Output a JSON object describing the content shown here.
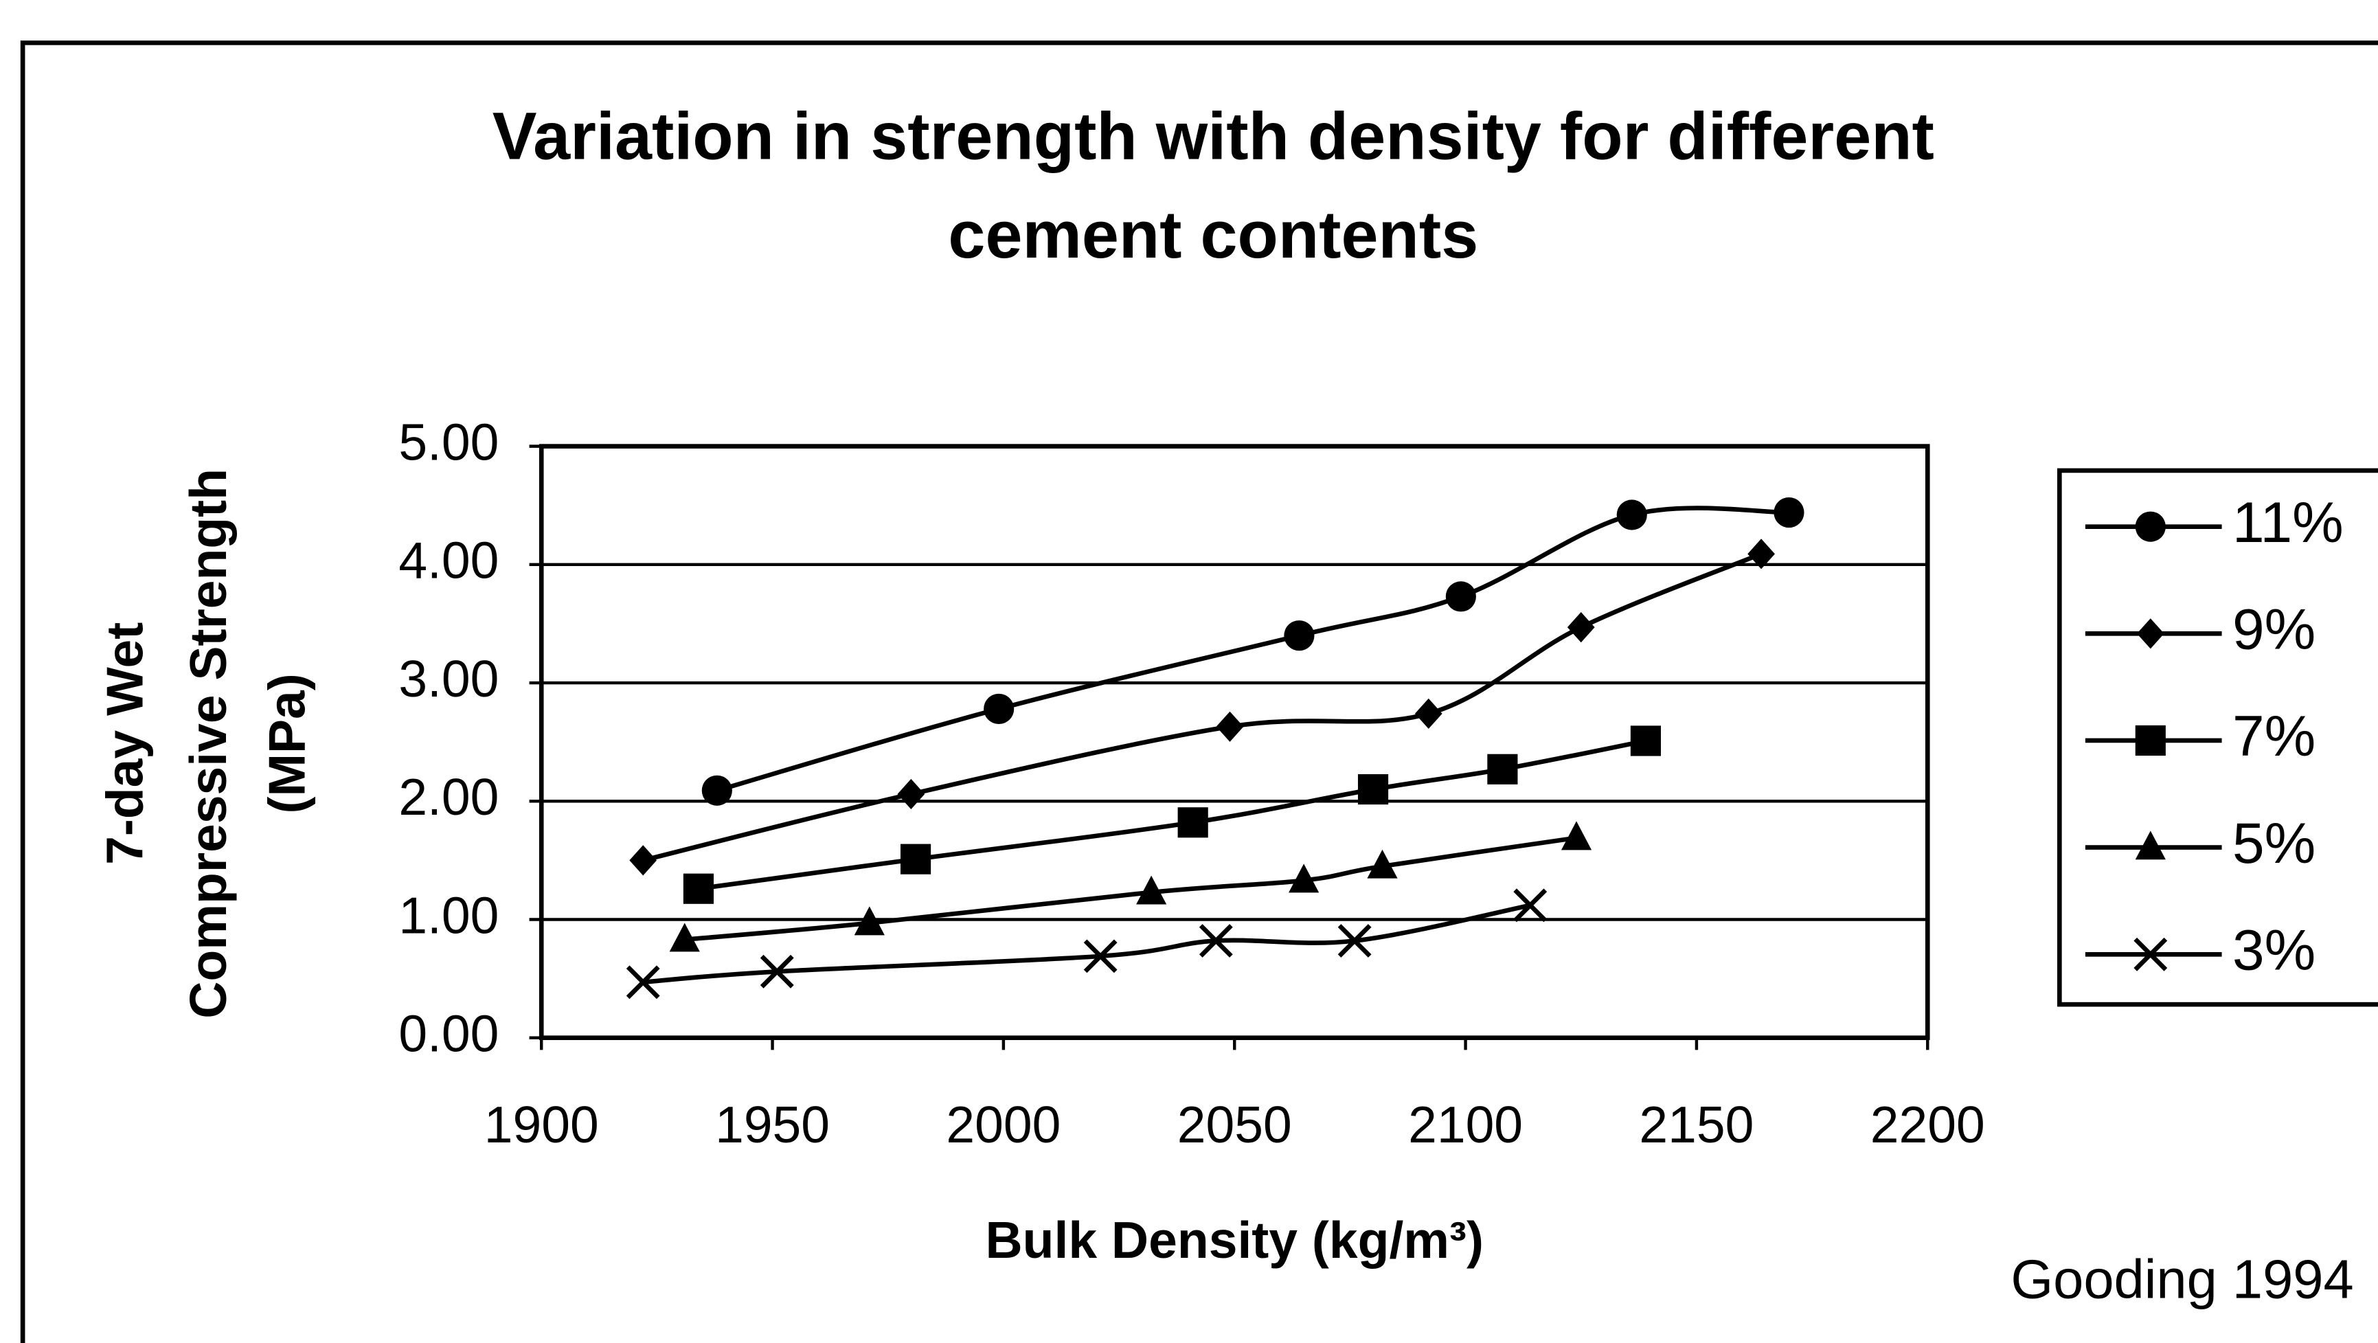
{
  "chart_data": {
    "type": "line",
    "title": [
      "Variation in strength with density for different",
      "cement contents"
    ],
    "xlabel": "Bulk Density (kg/m³)",
    "ylabel": [
      "7-day Wet",
      "Compressive Strength",
      "(MPa)"
    ],
    "annotation": "Gooding 1994",
    "xlim": [
      1900,
      2200
    ],
    "xticks": [
      1900,
      1950,
      2000,
      2050,
      2100,
      2150,
      2200
    ],
    "ylim": [
      0,
      5
    ],
    "yticks": [
      {
        "value": 0,
        "label": "0.00"
      },
      {
        "value": 1,
        "label": "1.00"
      },
      {
        "value": 2,
        "label": "2.00"
      },
      {
        "value": 3,
        "label": "3.00"
      },
      {
        "value": 4,
        "label": "4.00"
      },
      {
        "value": 5,
        "label": "5.00"
      }
    ],
    "grid": true,
    "legend": "right",
    "series": [
      {
        "name": "11%",
        "color": "#000000",
        "marker": "circle",
        "x": [
          1938,
          1999,
          2064,
          2099,
          2136,
          2170
        ],
        "values": [
          2.09,
          2.78,
          3.4,
          3.73,
          4.42,
          4.44
        ]
      },
      {
        "name": "9%",
        "color": "#000000",
        "marker": "diamond",
        "x": [
          1922,
          1980,
          2049,
          2092,
          2125,
          2164
        ],
        "values": [
          1.5,
          2.06,
          2.63,
          2.74,
          3.47,
          4.09
        ]
      },
      {
        "name": "7%",
        "color": "#000000",
        "marker": "square",
        "x": [
          1934,
          1981,
          2041,
          2080,
          2108,
          2139
        ],
        "values": [
          1.26,
          1.51,
          1.82,
          2.1,
          2.27,
          2.51
        ]
      },
      {
        "name": "5%",
        "color": "#000000",
        "marker": "triangle",
        "x": [
          1931,
          1971,
          2032,
          2065,
          2082,
          2124
        ],
        "values": [
          0.83,
          0.97,
          1.23,
          1.33,
          1.45,
          1.69
        ]
      },
      {
        "name": "3%",
        "color": "#000000",
        "marker": "x",
        "x": [
          1922,
          1951,
          2021,
          2046,
          2076,
          2114
        ],
        "values": [
          0.47,
          0.56,
          0.69,
          0.82,
          0.82,
          1.12
        ]
      }
    ]
  }
}
